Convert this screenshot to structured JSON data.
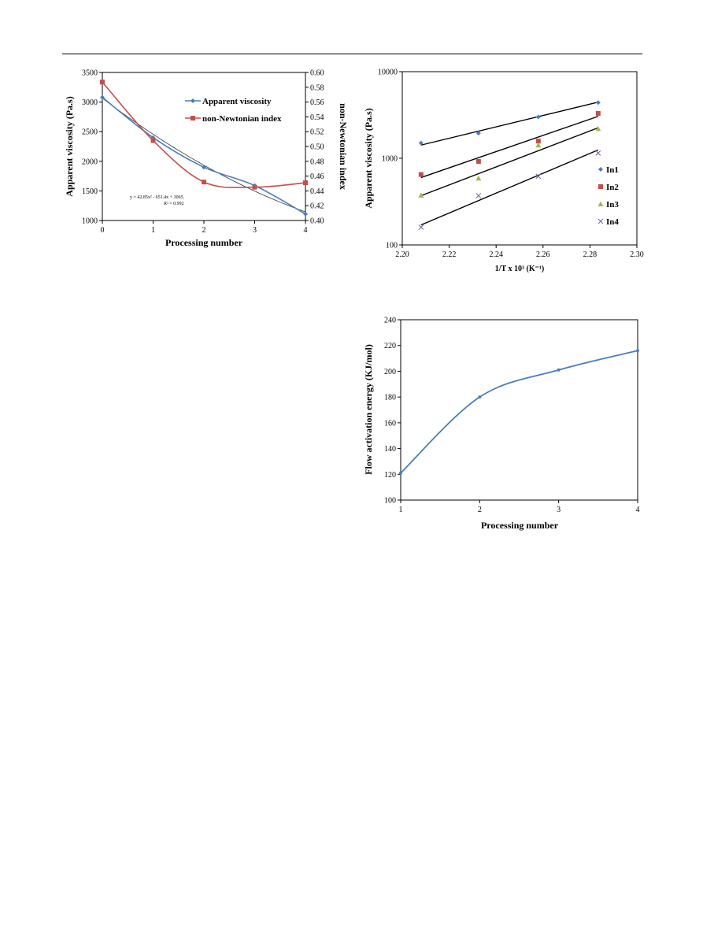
{
  "chart_data": [
    {
      "type": "line",
      "title": "",
      "xlabel": "Processing number",
      "ylabel": "Apparent viscosity (Pa.s)",
      "y2label": "non-Newtonian index",
      "x": [
        0,
        1,
        2,
        3,
        4
      ],
      "xlim": [
        0,
        4
      ],
      "ylim": [
        1000,
        3500
      ],
      "y2lim": [
        0.4,
        0.6
      ],
      "xticks": [
        "0",
        "1",
        "2",
        "3",
        "4"
      ],
      "yticks": [
        "1000",
        "1500",
        "2000",
        "2500",
        "3000",
        "3500"
      ],
      "y2ticks": [
        "0.40",
        "0.42",
        "0.44",
        "0.46",
        "0.48",
        "0.50",
        "0.52",
        "0.54",
        "0.56",
        "0.58",
        "0.60"
      ],
      "series": [
        {
          "name": "Apparent viscosity",
          "axis": "left",
          "color": "#4a7ebb",
          "marker": "diamond",
          "values": [
            3080,
            2400,
            1900,
            1590,
            1110
          ]
        },
        {
          "name": "non-Newtonian index",
          "axis": "right",
          "color": "#c0504d",
          "marker": "square",
          "values": [
            0.587,
            0.508,
            0.452,
            0.445,
            0.451
          ]
        }
      ],
      "trendline": {
        "equation_line1": "y = 42.85x² - 651.4x + 3065.",
        "equation_line2": "R² = 0.992",
        "a": 42.85,
        "b": -651.4,
        "c": 3065,
        "color": "#333333"
      },
      "legend": "top-right"
    },
    {
      "type": "scatter",
      "title": "",
      "xlabel": "1/T x 10³ (K⁻¹)",
      "ylabel": "Apparent viscosity (Pa.s)",
      "xlim": [
        2.2,
        2.3
      ],
      "ylim": [
        100,
        10000
      ],
      "yscale": "log",
      "xticks": [
        "2.20",
        "2.22",
        "2.24",
        "2.26",
        "2.28",
        "2.30"
      ],
      "yticks": [
        "100",
        "1000",
        "10000"
      ],
      "series": [
        {
          "name": "In1",
          "color": "#4a7ebb",
          "marker": "diamond",
          "x": [
            2.208,
            2.2325,
            2.258,
            2.2835
          ],
          "values": [
            1500,
            1950,
            3000,
            4400
          ],
          "fit": [
            1420,
            4450
          ]
        },
        {
          "name": "In2",
          "color": "#c0504d",
          "marker": "square",
          "x": [
            2.208,
            2.2325,
            2.258,
            2.2835
          ],
          "values": [
            650,
            920,
            1580,
            3300
          ],
          "fit": [
            600,
            3050
          ]
        },
        {
          "name": "In3",
          "color": "#9bbb59",
          "marker": "triangle",
          "x": [
            2.208,
            2.2325,
            2.258,
            2.2835
          ],
          "values": [
            375,
            590,
            1420,
            2200
          ],
          "fit": [
            370,
            2250
          ]
        },
        {
          "name": "In4",
          "color": "#8064a2",
          "marker": "x",
          "x": [
            2.208,
            2.2325,
            2.258,
            2.2835
          ],
          "values": [
            160,
            370,
            620,
            1150
          ],
          "fit": [
            170,
            1250
          ]
        }
      ],
      "legend": "right"
    },
    {
      "type": "line",
      "title": "",
      "xlabel": "Processing number",
      "ylabel": "Flow activation energy (KJ/mol)",
      "x": [
        1,
        2,
        3,
        4
      ],
      "xlim": [
        1,
        4
      ],
      "ylim": [
        100,
        240
      ],
      "xticks": [
        "1",
        "2",
        "3",
        "4"
      ],
      "yticks": [
        "100",
        "120",
        "140",
        "160",
        "180",
        "200",
        "220",
        "240"
      ],
      "series": [
        {
          "name": "Flow activation energy",
          "color": "#4a7ebb",
          "marker": "dot",
          "values": [
            121,
            180,
            201,
            216
          ]
        }
      ]
    }
  ]
}
